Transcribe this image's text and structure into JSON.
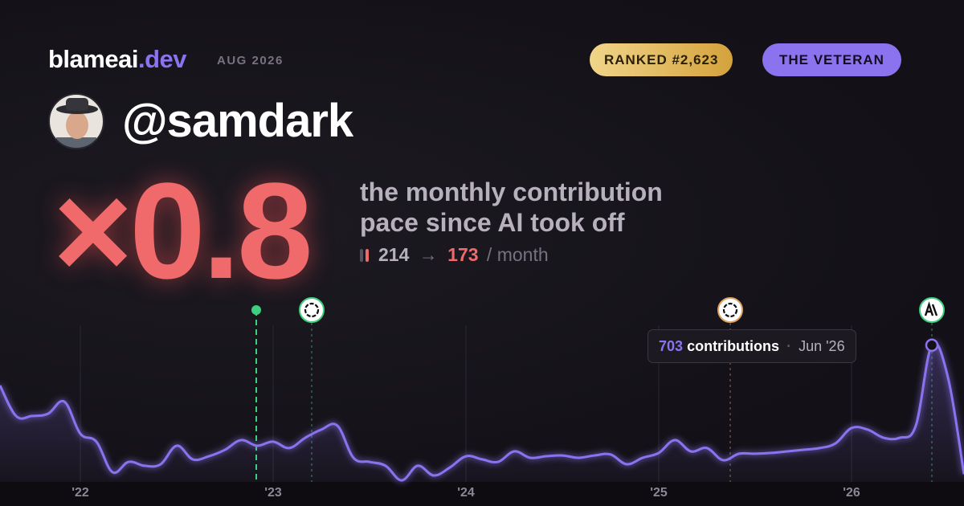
{
  "header": {
    "brand_name": "blameai",
    "brand_tld": ".dev",
    "date": "AUG 2026",
    "rank": "RANKED #2,623",
    "badge": "THE VETERAN",
    "handle": "@samdark"
  },
  "hero": {
    "multiplier": "×0.8",
    "line_1": "the monthly contribution",
    "line_2": "pace since AI took off",
    "before": 214,
    "arrow": "→",
    "after": 173,
    "unit": "/ month"
  },
  "tooltip": {
    "label": "contributions",
    "date": "Jun '26"
  },
  "chart_data": {
    "type": "line",
    "color": "#8b73f0",
    "categories": [
      null,
      null,
      null,
      null,
      null,
      "'22",
      null,
      null,
      null,
      null,
      null,
      null,
      null,
      null,
      null,
      null,
      null,
      "'23",
      null,
      null,
      null,
      null,
      null,
      null,
      null,
      null,
      null,
      null,
      null,
      "'24",
      null,
      null,
      null,
      null,
      null,
      null,
      null,
      null,
      null,
      null,
      null,
      "'25",
      null,
      null,
      null,
      null,
      null,
      null,
      null,
      null,
      null,
      null,
      null,
      "'26",
      null,
      null,
      null,
      null,
      null,
      null,
      null
    ],
    "values": [
      496,
      339,
      339,
      351,
      413,
      248,
      207,
      50,
      103,
      83,
      91,
      186,
      116,
      132,
      165,
      215,
      186,
      207,
      174,
      227,
      269,
      289,
      124,
      103,
      83,
      8,
      83,
      33,
      74,
      132,
      116,
      103,
      157,
      124,
      132,
      136,
      124,
      136,
      141,
      91,
      124,
      149,
      215,
      157,
      174,
      112,
      145,
      145,
      149,
      157,
      165,
      174,
      198,
      277,
      269,
      227,
      227,
      289,
      703,
      538,
      40
    ],
    "ylim": [
      0,
      826
    ]
  }
}
